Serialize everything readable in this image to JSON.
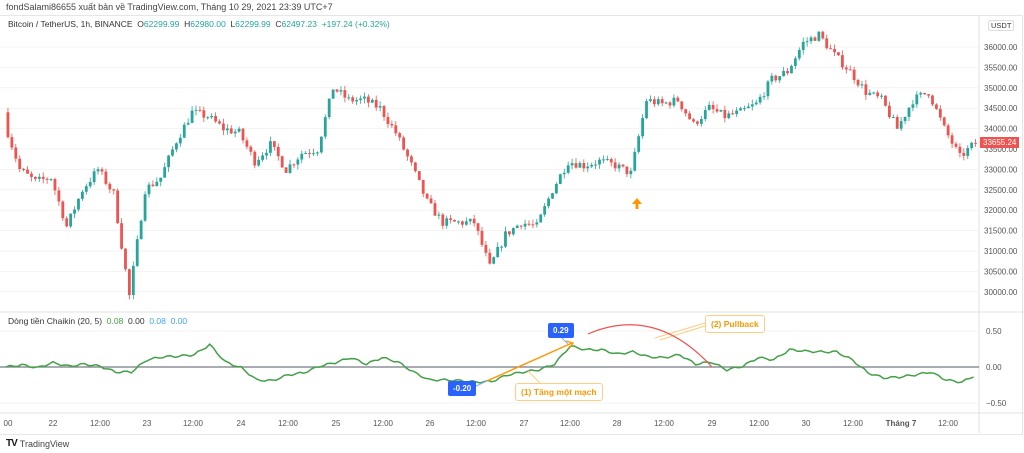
{
  "header": {
    "published": "fondSalami86655 xuất bản về TradingView.com, Tháng 10 29, 2021 23:39 UTC+7"
  },
  "legend": {
    "symbol": "Bitcoin / TetherUS, 1h, BINANCE",
    "o_label": "O",
    "o": "62299.99",
    "h_label": "H",
    "h": "62980.00",
    "l_label": "L",
    "l": "62299.99",
    "c_label": "C",
    "c": "62497.23",
    "change": "+197.24 (+0.32%)"
  },
  "indicator_legend": {
    "name": "Dòng tiền Chaikin (20, 5)",
    "v1": "0.08",
    "v2": "0.00",
    "v3": "0.08",
    "v4": "0.00"
  },
  "price_axis": {
    "currency": "USDT",
    "ticks": [
      "36000.00",
      "35500.00",
      "35000.00",
      "34500.00",
      "34000.00",
      "33500.00",
      "33000.00",
      "32500.00",
      "32000.00",
      "31500.00",
      "31000.00",
      "30500.00",
      "30000.00"
    ],
    "last_price": "33655.24"
  },
  "indicator_axis": {
    "ticks": [
      "0.50",
      "0.00",
      "−0.50"
    ]
  },
  "time_axis": {
    "ticks": [
      "00",
      "22",
      "12:00",
      "23",
      "12:00",
      "24",
      "12:00",
      "25",
      "12:00",
      "26",
      "12:00",
      "27",
      "12:00",
      "28",
      "12:00",
      "29",
      "12:00",
      "30",
      "12:00",
      "Tháng 7",
      "12:00"
    ]
  },
  "annotations": {
    "low_value": "-0.20",
    "high_value": "0.29",
    "note1": "(1) Tăng một mạch",
    "note2": "(2) Pullback",
    "signal_icon": "up-arrow"
  },
  "colors": {
    "up": "#26a69a",
    "down": "#ef5350",
    "cmf": "#43a047",
    "tag": "#2962ff",
    "note": "#ff9800",
    "arc": "#ef5350"
  },
  "footer": {
    "brand": "TradingView"
  },
  "chart_data": [
    {
      "type": "candlestick",
      "interval_shown": "1h",
      "ylim": [
        29700,
        36500
      ],
      "grid": true,
      "x": [
        "21 12:00",
        "21 16:00",
        "21 20:00",
        "22 00:00",
        "22 04:00",
        "22 08:00",
        "22 12:00",
        "22 16:00",
        "22 20:00",
        "23 00:00",
        "23 04:00",
        "23 08:00",
        "23 12:00",
        "23 16:00",
        "23 20:00",
        "24 00:00",
        "24 04:00",
        "24 08:00",
        "24 12:00",
        "24 16:00",
        "24 20:00",
        "25 00:00",
        "25 04:00",
        "25 08:00",
        "25 12:00",
        "25 16:00",
        "25 20:00",
        "26 00:00",
        "26 04:00",
        "26 08:00",
        "26 12:00",
        "26 16:00",
        "26 20:00",
        "27 00:00",
        "27 04:00",
        "27 08:00",
        "27 12:00",
        "27 16:00",
        "27 20:00",
        "28 00:00",
        "28 04:00",
        "28 08:00",
        "28 12:00",
        "28 16:00",
        "28 20:00",
        "29 00:00",
        "29 04:00",
        "29 08:00",
        "29 12:00",
        "29 16:00",
        "29 20:00",
        "30 00:00",
        "30 04:00",
        "30 08:00",
        "30 12:00",
        "30 16:00",
        "30 20:00",
        "1 00:00",
        "1 04:00",
        "1 08:00",
        "1 12:00",
        "1 16:00",
        "1 20:00"
      ],
      "close": [
        34200,
        33000,
        32700,
        32800,
        31600,
        32500,
        33000,
        32400,
        29900,
        32500,
        32800,
        33700,
        34400,
        34300,
        34000,
        33900,
        33200,
        33600,
        33000,
        33400,
        33500,
        35000,
        34700,
        34700,
        34500,
        33900,
        33100,
        32200,
        31700,
        31700,
        31700,
        30600,
        31400,
        31700,
        31600,
        32500,
        33200,
        33100,
        33200,
        33100,
        32900,
        34700,
        34600,
        34700,
        34100,
        34500,
        34300,
        34400,
        34600,
        35200,
        35400,
        36100,
        36300,
        35800,
        35400,
        34900,
        34700,
        34000,
        34700,
        34900,
        34000,
        33300,
        33655
      ]
    },
    {
      "type": "line",
      "name": "Dòng tiền Chaikin (20, 5)",
      "ylim": [
        -0.6,
        0.6
      ],
      "zero_line": true,
      "values": [
        0.0,
        0.03,
        -0.01,
        0.06,
        0.01,
        0.04,
        0.01,
        -0.07,
        -0.07,
        0.1,
        0.14,
        0.15,
        0.17,
        0.31,
        0.07,
        -0.01,
        -0.18,
        -0.19,
        -0.11,
        -0.08,
        0.01,
        0.06,
        0.13,
        0.04,
        0.13,
        0.07,
        -0.07,
        -0.18,
        -0.18,
        -0.19,
        -0.21,
        -0.2,
        -0.11,
        -0.07,
        -0.04,
        0.04,
        0.29,
        0.24,
        0.24,
        0.18,
        0.21,
        0.14,
        0.13,
        0.17,
        0.04,
        0.07,
        -0.04,
        0.01,
        0.13,
        0.1,
        0.24,
        0.22,
        0.21,
        0.21,
        0.1,
        -0.08,
        -0.15,
        -0.14,
        -0.11,
        -0.07,
        -0.18,
        -0.21,
        -0.1
      ]
    }
  ]
}
